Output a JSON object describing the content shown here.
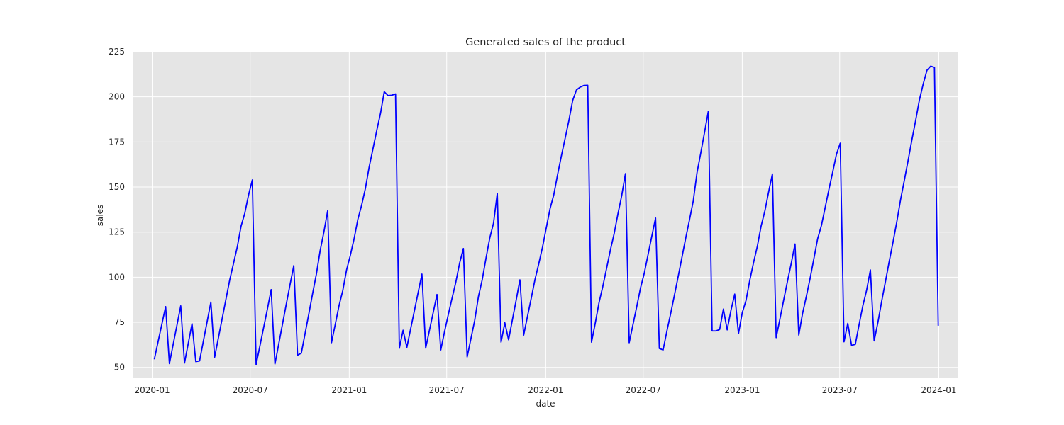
{
  "chart_data": {
    "type": "line",
    "title": "Generated sales of the product",
    "xlabel": "date",
    "ylabel": "sales",
    "x_axis_type": "date",
    "xlim": [
      "2019-11-27",
      "2024-02-05"
    ],
    "ylim": [
      44,
      225
    ],
    "grid": true,
    "legend": "none",
    "colors": {
      "background": "#e5e5e5",
      "grid": "#ffffff",
      "line": "#0000ff",
      "text": "#262626"
    },
    "x_ticks": [
      {
        "date": "2020-01-01",
        "label": "2020-01"
      },
      {
        "date": "2020-07-01",
        "label": "2020-07"
      },
      {
        "date": "2021-01-01",
        "label": "2021-01"
      },
      {
        "date": "2021-07-01",
        "label": "2021-07"
      },
      {
        "date": "2022-01-01",
        "label": "2022-01"
      },
      {
        "date": "2022-07-01",
        "label": "2022-07"
      },
      {
        "date": "2023-01-01",
        "label": "2023-01"
      },
      {
        "date": "2023-07-01",
        "label": "2023-07"
      },
      {
        "date": "2024-01-01",
        "label": "2024-01"
      }
    ],
    "y_ticks": [
      50,
      75,
      100,
      125,
      150,
      175,
      200,
      225
    ],
    "series": [
      {
        "x": [
          "2020-01-05",
          "2020-01-12",
          "2020-01-19",
          "2020-01-26",
          "2020-02-02",
          "2020-02-09",
          "2020-02-16",
          "2020-02-23",
          "2020-03-01",
          "2020-03-08",
          "2020-03-15",
          "2020-03-22",
          "2020-03-29",
          "2020-04-05",
          "2020-04-12",
          "2020-04-19",
          "2020-04-26",
          "2020-05-03",
          "2020-05-10",
          "2020-05-17",
          "2020-05-24",
          "2020-05-31",
          "2020-06-07",
          "2020-06-14",
          "2020-06-21",
          "2020-06-28",
          "2020-07-05",
          "2020-07-12",
          "2020-07-19",
          "2020-07-26",
          "2020-08-02",
          "2020-08-09",
          "2020-08-16",
          "2020-08-23",
          "2020-08-30",
          "2020-09-06",
          "2020-09-13",
          "2020-09-20",
          "2020-09-27",
          "2020-10-04",
          "2020-10-11",
          "2020-10-18",
          "2020-10-25",
          "2020-11-01",
          "2020-11-08",
          "2020-11-15",
          "2020-11-22",
          "2020-11-29",
          "2020-12-06",
          "2020-12-13",
          "2020-12-20",
          "2020-12-27",
          "2021-01-03",
          "2021-01-10",
          "2021-01-17",
          "2021-01-24",
          "2021-01-31",
          "2021-02-07",
          "2021-02-14",
          "2021-02-21",
          "2021-02-28",
          "2021-03-07",
          "2021-03-14",
          "2021-03-21",
          "2021-03-28",
          "2021-04-04",
          "2021-04-11",
          "2021-04-18",
          "2021-04-25",
          "2021-05-02",
          "2021-05-09",
          "2021-05-16",
          "2021-05-23",
          "2021-05-30",
          "2021-06-06",
          "2021-06-13",
          "2021-06-20",
          "2021-06-27",
          "2021-07-04",
          "2021-07-11",
          "2021-07-18",
          "2021-07-25",
          "2021-08-01",
          "2021-08-08",
          "2021-08-15",
          "2021-08-22",
          "2021-08-29",
          "2021-09-05",
          "2021-09-12",
          "2021-09-19",
          "2021-09-26",
          "2021-10-03",
          "2021-10-10",
          "2021-10-17",
          "2021-10-24",
          "2021-10-31",
          "2021-11-07",
          "2021-11-14",
          "2021-11-21",
          "2021-11-28",
          "2021-12-05",
          "2021-12-12",
          "2021-12-19",
          "2021-12-26",
          "2022-01-02",
          "2022-01-09",
          "2022-01-16",
          "2022-01-23",
          "2022-01-30",
          "2022-02-06",
          "2022-02-13",
          "2022-02-20",
          "2022-02-27",
          "2022-03-06",
          "2022-03-13",
          "2022-03-20",
          "2022-03-27",
          "2022-04-03",
          "2022-04-10",
          "2022-04-17",
          "2022-04-24",
          "2022-05-01",
          "2022-05-08",
          "2022-05-15",
          "2022-05-22",
          "2022-05-29",
          "2022-06-05",
          "2022-06-12",
          "2022-06-19",
          "2022-06-26",
          "2022-07-03",
          "2022-07-10",
          "2022-07-17",
          "2022-07-24",
          "2022-07-31",
          "2022-08-07",
          "2022-08-14",
          "2022-08-21",
          "2022-08-28",
          "2022-09-04",
          "2022-09-11",
          "2022-09-18",
          "2022-09-25",
          "2022-10-02",
          "2022-10-09",
          "2022-10-16",
          "2022-10-23",
          "2022-10-30",
          "2022-11-06",
          "2022-11-13",
          "2022-11-20",
          "2022-11-27",
          "2022-12-04",
          "2022-12-11",
          "2022-12-18",
          "2022-12-25",
          "2023-01-01",
          "2023-01-08",
          "2023-01-15",
          "2023-01-22",
          "2023-01-29",
          "2023-02-05",
          "2023-02-12",
          "2023-02-19",
          "2023-02-26",
          "2023-03-05",
          "2023-03-12",
          "2023-03-19",
          "2023-03-26",
          "2023-04-02",
          "2023-04-09",
          "2023-04-16",
          "2023-04-23",
          "2023-04-30",
          "2023-05-07",
          "2023-05-14",
          "2023-05-21",
          "2023-05-28",
          "2023-06-04",
          "2023-06-11",
          "2023-06-18",
          "2023-06-25",
          "2023-07-02",
          "2023-07-09",
          "2023-07-16",
          "2023-07-23",
          "2023-07-30",
          "2023-08-06",
          "2023-08-13",
          "2023-08-20",
          "2023-08-27",
          "2023-09-03",
          "2023-09-10",
          "2023-09-17",
          "2023-09-24",
          "2023-10-01",
          "2023-10-08",
          "2023-10-15",
          "2023-10-22",
          "2023-10-29",
          "2023-11-05",
          "2023-11-12",
          "2023-11-19",
          "2023-11-26",
          "2023-12-03",
          "2023-12-10",
          "2023-12-17",
          "2023-12-24",
          "2023-12-31"
        ],
        "values": [
          54.5,
          64.3,
          74.0,
          83.7,
          52.1,
          62.8,
          73.4,
          84.1,
          52.4,
          63.3,
          74.2,
          53.2,
          53.6,
          64.5,
          75.3,
          86.2,
          55.7,
          66.4,
          77.1,
          87.8,
          98.5,
          107.6,
          116.7,
          128.2,
          135.5,
          145.6,
          153.9,
          51.6,
          61.8,
          72.1,
          82.4,
          93.1,
          51.9,
          62.9,
          74.0,
          85.0,
          95.8,
          106.4,
          56.8,
          57.9,
          68.8,
          79.8,
          91.0,
          101.8,
          114.8,
          125.2,
          136.9,
          63.7,
          73.8,
          84.2,
          92.6,
          104.0,
          112.1,
          121.3,
          132.1,
          139.9,
          149.2,
          161.1,
          171.1,
          181.2,
          190.7,
          202.8,
          200.7,
          200.9,
          201.6,
          60.6,
          70.6,
          61.1,
          71.3,
          81.4,
          91.6,
          101.7,
          60.7,
          70.6,
          80.5,
          90.4,
          59.7,
          69.8,
          79.3,
          88.4,
          97.3,
          107.8,
          115.9,
          55.8,
          65.9,
          76.0,
          89.3,
          98.6,
          110.5,
          121.7,
          130.0,
          146.5,
          64.0,
          74.7,
          65.3,
          76.3,
          87.2,
          98.5,
          67.9,
          78.2,
          88.3,
          98.7,
          107.4,
          116.7,
          127.4,
          138.0,
          145.8,
          156.9,
          167.2,
          177.0,
          186.9,
          198.0,
          203.8,
          205.4,
          206.3,
          206.4,
          64.0,
          74.6,
          86.0,
          94.9,
          104.9,
          115.0,
          124.1,
          135.0,
          145.1,
          157.4,
          63.7,
          73.7,
          83.7,
          94.0,
          102.2,
          112.5,
          122.7,
          132.8,
          60.5,
          59.7,
          70.1,
          79.8,
          90.0,
          100.4,
          111.0,
          121.7,
          131.8,
          142.3,
          158.0,
          169.0,
          180.4,
          192.0,
          70.2,
          70.2,
          71.0,
          82.3,
          70.8,
          81.6,
          90.6,
          68.7,
          80.3,
          87.1,
          98.3,
          108.1,
          117.1,
          128.3,
          136.7,
          147.3,
          157.2,
          66.5,
          76.9,
          87.4,
          97.7,
          107.7,
          118.4,
          67.9,
          79.9,
          89.3,
          99.3,
          110.2,
          121.3,
          128.6,
          138.6,
          148.7,
          158.3,
          168.2,
          174.3,
          64.2,
          74.4,
          62.2,
          62.8,
          73.7,
          84.2,
          92.8,
          104.0,
          64.7,
          75.0,
          86.7,
          97.6,
          108.8,
          119.4,
          130.6,
          142.9,
          153.6,
          164.6,
          176.0,
          186.8,
          198.2,
          207.0,
          214.7,
          217.0,
          216.3,
          73.1
        ]
      }
    ]
  }
}
